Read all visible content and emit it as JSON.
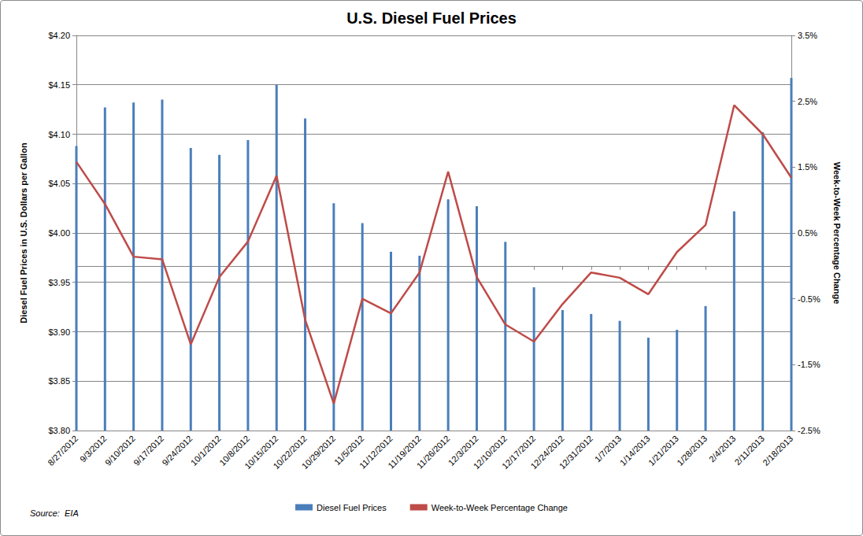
{
  "chart_data": {
    "type": "bar",
    "title": "U.S. Diesel Fuel Prices",
    "y_label": "Diesel Fuel Prices in U.S. Dollars per Gallon",
    "y2_label": "Week-to-Week Percentage Change",
    "annotations": [
      "Source:  EIA"
    ],
    "categories": [
      "8/27/2012",
      "9/3/2012",
      "9/10/2012",
      "9/17/2012",
      "9/24/2012",
      "10/1/2012",
      "10/8/2012",
      "10/15/2012",
      "10/22/2012",
      "10/29/2012",
      "11/5/2012",
      "11/12/2012",
      "11/19/2012",
      "11/26/2012",
      "12/3/2012",
      "12/10/2012",
      "12/17/2012",
      "12/24/2012",
      "12/31/2012",
      "1/7/2013",
      "1/14/2013",
      "1/21/2013",
      "1/28/2013",
      "2/4/2013",
      "2/11/2013",
      "2/18/2013"
    ],
    "series": [
      {
        "name": "Diesel Fuel Prices",
        "type": "bar",
        "color": "#4a7ebb",
        "values": [
          4.088,
          4.127,
          4.132,
          4.135,
          4.086,
          4.079,
          4.094,
          4.15,
          4.116,
          4.03,
          4.01,
          3.981,
          3.977,
          4.034,
          4.027,
          3.991,
          3.945,
          3.922,
          3.918,
          3.911,
          3.894,
          3.902,
          3.926,
          4.022,
          4.102,
          4.157
        ]
      },
      {
        "name": "Week-to-Week Percentage Change",
        "type": "line",
        "axis": "y2",
        "color": "#be4b48",
        "marker": "none",
        "values": [
          1.58,
          0.94,
          0.14,
          0.1,
          -1.19,
          -0.17,
          0.37,
          1.37,
          -0.82,
          -2.09,
          -0.5,
          -0.72,
          -0.1,
          1.43,
          -0.17,
          -0.89,
          -1.15,
          -0.58,
          -0.1,
          -0.18,
          -0.43,
          0.21,
          0.62,
          2.44,
          2.0,
          1.34
        ]
      }
    ],
    "ylim": [
      3.8,
      4.2
    ],
    "yticks": [
      {
        "value": 3.8,
        "label": "$3.80"
      },
      {
        "value": 3.85,
        "label": "$3.85"
      },
      {
        "value": 3.9,
        "label": "$3.90"
      },
      {
        "value": 3.95,
        "label": "$3.95"
      },
      {
        "value": 4.0,
        "label": "$4.00"
      },
      {
        "value": 4.05,
        "label": "$4.05"
      },
      {
        "value": 4.1,
        "label": "$4.10"
      },
      {
        "value": 4.15,
        "label": "$4.15"
      },
      {
        "value": 4.2,
        "label": "$4.20"
      }
    ],
    "y2lim": [
      -2.5,
      3.5
    ],
    "y2ticks": [
      {
        "value": -2.5,
        "label": "-2.5%"
      },
      {
        "value": -1.5,
        "label": "-1.5%"
      },
      {
        "value": -0.5,
        "label": "-0.5%"
      },
      {
        "value": 0.5,
        "label": "0.5%"
      },
      {
        "value": 1.5,
        "label": "1.5%"
      },
      {
        "value": 2.5,
        "label": "2.5%"
      },
      {
        "value": 3.5,
        "label": "3.5%"
      }
    ],
    "grid": true,
    "legend": "bottom"
  }
}
